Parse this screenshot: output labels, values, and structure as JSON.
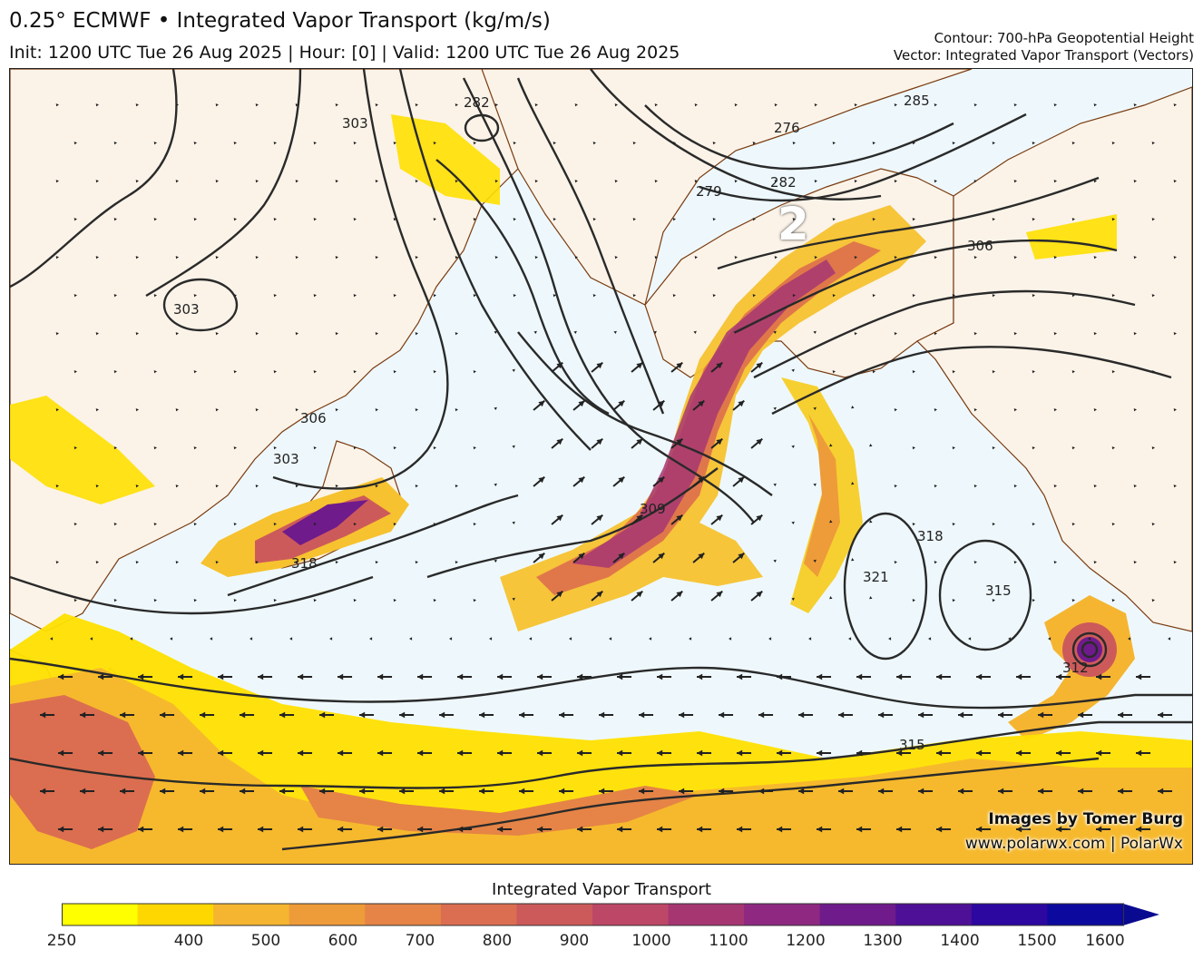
{
  "header": {
    "title": "0.25° ECMWF • Integrated Vapor Transport (kg/m/s)",
    "subtitle": "Init: 1200 UTC Tue 26 Aug 2025 | Hour: [0] | Valid: 1200 UTC Tue 26 Aug 2025",
    "contour_label": "Contour: 700-hPa Geopotential Height",
    "vector_label": "Vector: Integrated Vapor Transport (Vectors)"
  },
  "credits": {
    "line1": "Images by Tomer Burg",
    "line2": "www.polarwx.com | PolarWx"
  },
  "map": {
    "storm_marker": "2",
    "contour_labels": [
      "282",
      "276",
      "279",
      "282",
      "285",
      "303",
      "303",
      "306",
      "306",
      "303",
      "309",
      "318",
      "321",
      "318",
      "315",
      "312",
      "315"
    ],
    "colors": {
      "ocean": "#eef8fc",
      "land": "#fbf3e8",
      "coast": "#7a3b10",
      "contour": "#2a2a2a"
    }
  },
  "colorbar": {
    "title": "Integrated Vapor Transport",
    "ticks": [
      "250",
      "400",
      "500",
      "600",
      "700",
      "800",
      "900",
      "1000",
      "1100",
      "1200",
      "1300",
      "1400",
      "1500",
      "1600"
    ],
    "colors": [
      "#ffff00",
      "#ffd700",
      "#f5b531",
      "#ee9b3a",
      "#e58446",
      "#db6e50",
      "#cd5a5a",
      "#bd4766",
      "#a63672",
      "#8e2880",
      "#6f1b8b",
      "#4e1096",
      "#2c07a0",
      "#0c0a9e"
    ]
  }
}
